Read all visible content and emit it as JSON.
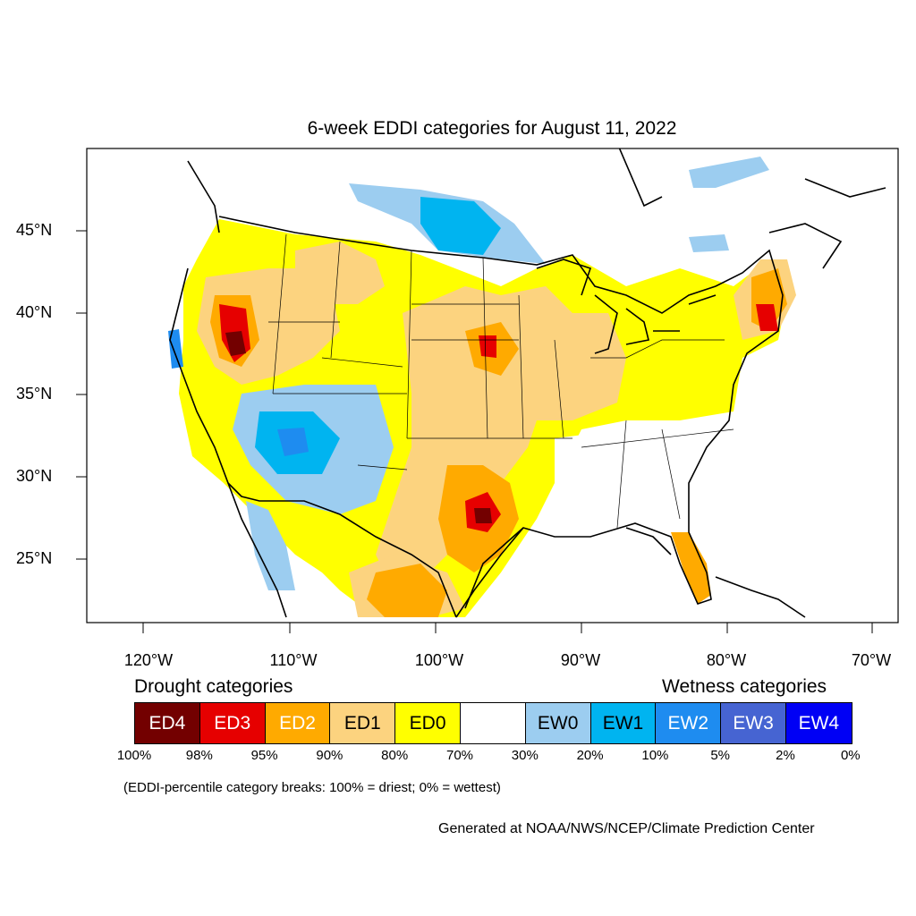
{
  "map": {
    "title": "6-week EDDI categories for August 11, 2022",
    "lat_labels": [
      "45°N",
      "40°N",
      "35°N",
      "30°N",
      "25°N"
    ],
    "lon_labels": [
      "120°W",
      "110°W",
      "100°W",
      "90°W",
      "80°W",
      "70°W"
    ]
  },
  "legend": {
    "drought_heading": "Drought categories",
    "wetness_heading": "Wetness categories",
    "categories": [
      {
        "label": "ED4",
        "color": "#730000",
        "text_color": "#ffffff"
      },
      {
        "label": "ED3",
        "color": "#e60000",
        "text_color": "#ffffff"
      },
      {
        "label": "ED2",
        "color": "#ffaa00",
        "text_color": "#ffffff"
      },
      {
        "label": "ED1",
        "color": "#fcd37f",
        "text_color": "#000000"
      },
      {
        "label": "ED0",
        "color": "#ffff00",
        "text_color": "#000000"
      },
      {
        "label": "",
        "color": "#ffffff",
        "text_color": "#000000"
      },
      {
        "label": "EW0",
        "color": "#9ccdf0",
        "text_color": "#000000"
      },
      {
        "label": "EW1",
        "color": "#00b4f0",
        "text_color": "#000000"
      },
      {
        "label": "EW2",
        "color": "#1e8cf0",
        "text_color": "#ffffff"
      },
      {
        "label": "EW3",
        "color": "#4664d2",
        "text_color": "#ffffff"
      },
      {
        "label": "EW4",
        "color": "#0000f5",
        "text_color": "#ffffff"
      }
    ],
    "percentiles": [
      "100%",
      "98%",
      "95%",
      "90%",
      "80%",
      "70%",
      "30%",
      "20%",
      "10%",
      "5%",
      "2%",
      "0%"
    ],
    "note": "(EDDI-percentile category breaks: 100% = driest; 0% = wettest)"
  },
  "credit": "Generated at NOAA/NWS/NCEP/Climate Prediction Center"
}
